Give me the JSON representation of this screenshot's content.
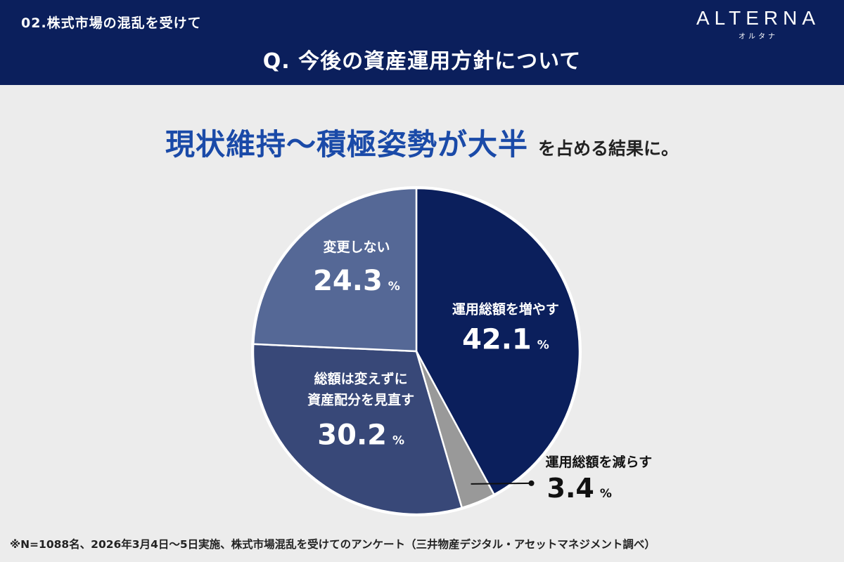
{
  "header": {
    "section_label": "02.株式市場の混乱を受けて",
    "question": "Q. 今後の資産運用方針について",
    "logo_main": "ALTERNA",
    "logo_sub": "オルタナ"
  },
  "headline": {
    "strong": "現状維持〜積極姿勢が大半",
    "rest": "を占める結果に。"
  },
  "colors": {
    "header_bg": "#0b1f5c",
    "accent": "#1a4aa8",
    "slice_increase": "#0b1f5c",
    "slice_decrease": "#999999",
    "slice_reallocate": "#384878",
    "slice_nochange": "#556896"
  },
  "chart_data": {
    "type": "pie",
    "unit": "%",
    "slices": [
      {
        "label": "運用総額を増やす",
        "value": 42.1,
        "value_text": "42.1",
        "color": "#0b1f5c"
      },
      {
        "label": "運用総額を減らす",
        "value": 3.4,
        "value_text": "3.4",
        "color": "#999999"
      },
      {
        "label": "総額は変えずに資産配分を見直す",
        "label_lines": [
          "総額は変えずに",
          "資産配分を見直す"
        ],
        "value": 30.2,
        "value_text": "30.2",
        "color": "#384878"
      },
      {
        "label": "変更しない",
        "value": 24.3,
        "value_text": "24.3",
        "color": "#556896"
      }
    ]
  },
  "footnote": "※N=1088名、2026年3月4日〜5日実施、株式市場混乱を受けてのアンケート（三井物産デジタル・アセットマネジメント調べ）"
}
